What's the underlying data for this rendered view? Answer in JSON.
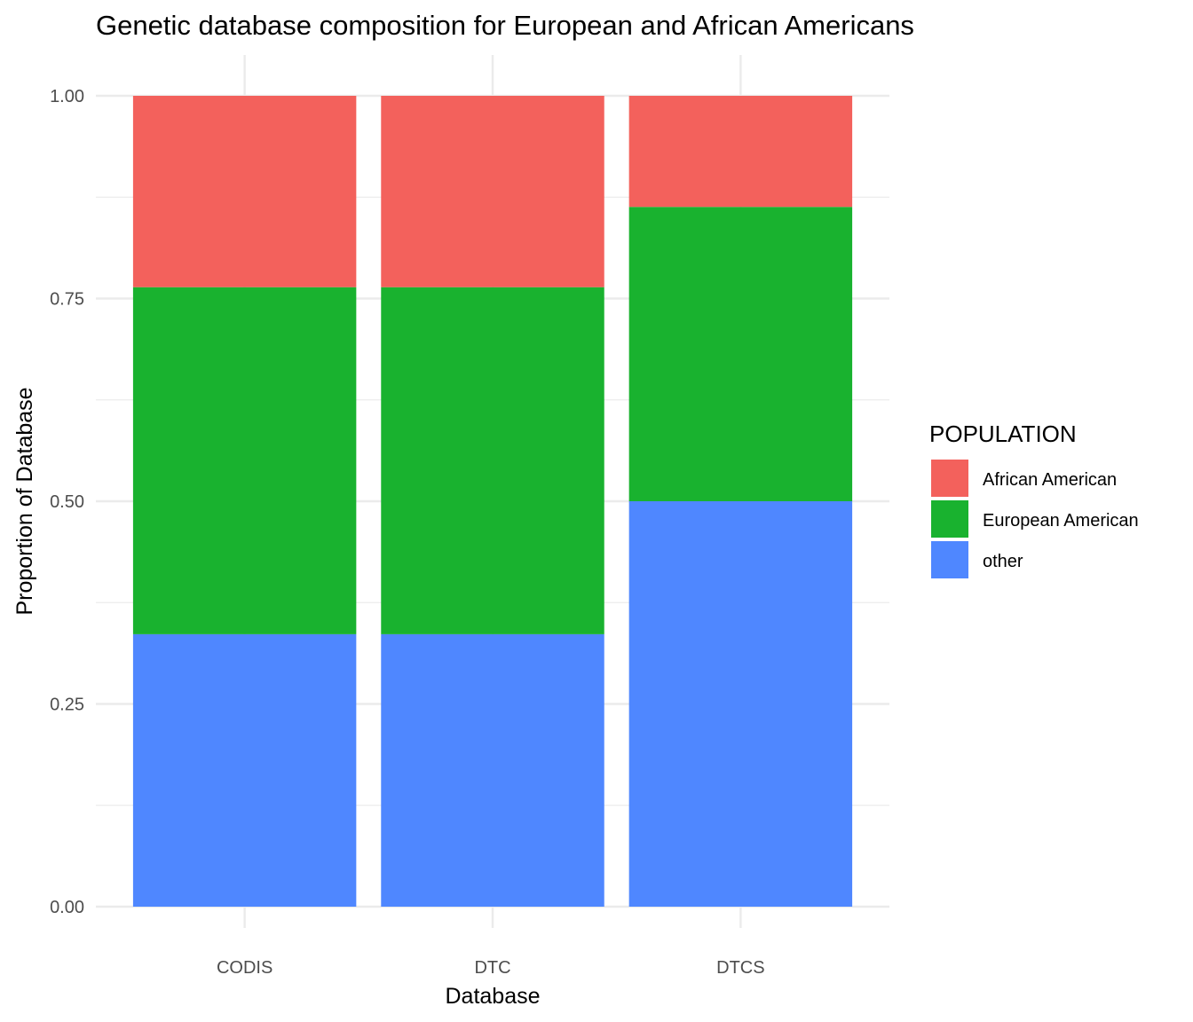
{
  "chart_data": {
    "type": "bar",
    "stacked": true,
    "title": "Genetic database composition for European and African Americans",
    "xlabel": "Database",
    "ylabel": "Proportion of Database",
    "categories": [
      "CODIS",
      "DTC",
      "DTCS"
    ],
    "ylim": [
      0,
      1
    ],
    "yticks": [
      "0.00",
      "0.25",
      "0.50",
      "0.75",
      "1.00"
    ],
    "grid": true,
    "legend": {
      "title": "POPULATION",
      "position": "right"
    },
    "series": [
      {
        "name": "African American",
        "color": "#F3615C",
        "values": [
          0.236,
          0.236,
          0.137
        ]
      },
      {
        "name": "European American",
        "color": "#19B22F",
        "values": [
          0.428,
          0.428,
          0.363
        ]
      },
      {
        "name": "other",
        "color": "#4F87FF",
        "values": [
          0.336,
          0.336,
          0.5
        ]
      }
    ]
  }
}
